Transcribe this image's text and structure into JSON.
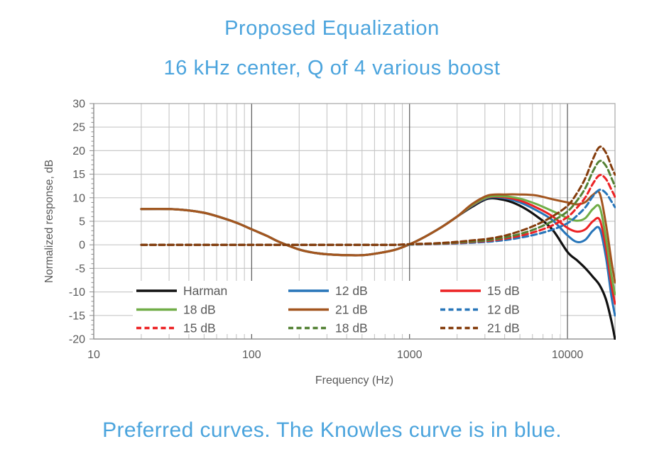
{
  "page": {
    "title_line1": "Proposed Equalization",
    "title_line2": "16 kHz center, Q of 4 various boost",
    "caption": "Preferred curves. The Knowles curve is in blue.",
    "title_color": "#4BA4DD",
    "background": "#ffffff"
  },
  "colors": {
    "axis_text": "#595959",
    "grid_minor": "#c6c6c6",
    "grid_major_vertical": "#595959",
    "grid_horizontal": "#c9c9c9",
    "plot_border": "#a6a6a6",
    "axis_line": "#8c8c8c",
    "legend_text": "#595959",
    "legend_background": "#ffffff"
  },
  "chart_data": {
    "type": "line",
    "title": "Proposed Equalization — 16 kHz center, Q of 4 various boost",
    "xlabel": "Frequency (Hz)",
    "ylabel": "Normalized response, dB",
    "x_scale": "log",
    "xlim": [
      10,
      20000
    ],
    "ylim": [
      -20,
      30
    ],
    "grid": true,
    "legend_position": "inside-bottom-left",
    "y_ticks": [
      30,
      25,
      20,
      15,
      10,
      5,
      0,
      -5,
      -10,
      -15,
      -20
    ],
    "x_tick_labels": [
      "10",
      "100",
      "1000",
      "10000"
    ],
    "x_major_ticks": [
      10,
      100,
      1000,
      10000
    ],
    "x": [
      20,
      30,
      40,
      50,
      60,
      80,
      100,
      125,
      150,
      200,
      250,
      300,
      400,
      500,
      600,
      800,
      1000,
      1250,
      1600,
      2000,
      2500,
      3150,
      4000,
      5000,
      6300,
      8000,
      10000,
      11500,
      13000,
      14500,
      16000,
      17500,
      19000,
      20000
    ],
    "series": [
      {
        "label": "Harman",
        "color": "#111111",
        "dashed": false,
        "width": 3.2,
        "values": [
          7.6,
          7.6,
          7.3,
          6.8,
          6.1,
          4.7,
          3.3,
          1.9,
          0.6,
          -1.0,
          -1.7,
          -2.0,
          -2.2,
          -2.2,
          -1.9,
          -1.1,
          0.1,
          1.7,
          3.8,
          6.0,
          8.1,
          9.8,
          9.5,
          8.3,
          6.2,
          3.3,
          -1.5,
          -3.3,
          -5.0,
          -6.8,
          -8.6,
          -11.5,
          -16.2,
          -20.0
        ]
      },
      {
        "label": "12 dB",
        "color": "#2775B9",
        "dashed": false,
        "width": 3,
        "values": [
          7.6,
          7.6,
          7.3,
          6.8,
          6.1,
          4.7,
          3.3,
          1.9,
          0.6,
          -1.0,
          -1.7,
          -2.0,
          -2.2,
          -2.2,
          -1.9,
          -1.1,
          0.1,
          1.7,
          3.8,
          6.0,
          8.3,
          10.0,
          9.9,
          9.0,
          7.4,
          5.3,
          2.0,
          0.6,
          1.1,
          3.0,
          3.4,
          -2.5,
          -11.0,
          -15.0
        ]
      },
      {
        "label": "15 dB",
        "color": "#EC2224",
        "dashed": false,
        "width": 3,
        "values": [
          7.6,
          7.6,
          7.3,
          6.8,
          6.1,
          4.7,
          3.3,
          1.9,
          0.6,
          -1.0,
          -1.7,
          -2.0,
          -2.2,
          -2.2,
          -1.9,
          -1.1,
          0.1,
          1.7,
          3.8,
          6.0,
          8.4,
          10.1,
          10.1,
          9.4,
          8.0,
          6.1,
          3.6,
          2.8,
          3.3,
          5.0,
          5.3,
          -0.5,
          -8.5,
          -12.5
        ]
      },
      {
        "label": "18 dB",
        "color": "#70AD47",
        "dashed": false,
        "width": 3,
        "values": [
          7.6,
          7.6,
          7.3,
          6.8,
          6.1,
          4.7,
          3.3,
          1.9,
          0.6,
          -1.0,
          -1.7,
          -2.0,
          -2.2,
          -2.2,
          -1.9,
          -1.1,
          0.1,
          1.7,
          3.8,
          6.0,
          8.5,
          10.2,
          10.3,
          9.8,
          8.7,
          7.2,
          5.7,
          5.1,
          5.7,
          7.6,
          8.0,
          1.5,
          -6.5,
          -10.5
        ]
      },
      {
        "label": "21 dB",
        "color": "#A3551F",
        "dashed": false,
        "width": 3,
        "values": [
          7.6,
          7.6,
          7.3,
          6.8,
          6.1,
          4.7,
          3.3,
          1.9,
          0.6,
          -1.0,
          -1.7,
          -2.0,
          -2.2,
          -2.2,
          -1.9,
          -1.1,
          0.1,
          1.7,
          3.8,
          6.0,
          8.7,
          10.5,
          10.7,
          10.7,
          10.5,
          9.7,
          9.0,
          8.6,
          9.1,
          10.6,
          10.9,
          4.5,
          -3.5,
          -8.0
        ]
      },
      {
        "label": "12 dB",
        "color": "#2775B9",
        "dashed": true,
        "width": 3,
        "values": [
          0,
          0,
          0,
          0,
          0,
          0,
          0,
          0,
          0,
          0,
          0,
          0,
          0,
          0,
          0,
          0,
          0.05,
          0.1,
          0.2,
          0.3,
          0.45,
          0.65,
          1.0,
          1.5,
          2.2,
          3.2,
          4.6,
          6.2,
          8.0,
          10.3,
          11.7,
          11.0,
          9.2,
          8.0
        ]
      },
      {
        "label": "15 dB",
        "color": "#EC2224",
        "dashed": true,
        "width": 3,
        "values": [
          0,
          0,
          0,
          0,
          0,
          0,
          0,
          0,
          0,
          0,
          0,
          0,
          0,
          0,
          0,
          0,
          0.1,
          0.15,
          0.25,
          0.4,
          0.6,
          0.85,
          1.3,
          1.9,
          2.8,
          4.1,
          5.9,
          7.9,
          10.1,
          13.0,
          14.8,
          14.0,
          11.7,
          10.2
        ]
      },
      {
        "label": "18 dB",
        "color": "#548235",
        "dashed": true,
        "width": 3,
        "values": [
          0,
          0,
          0,
          0,
          0,
          0,
          0,
          0,
          0,
          0,
          0,
          0,
          0,
          0,
          0,
          0,
          0.1,
          0.2,
          0.3,
          0.5,
          0.7,
          1.0,
          1.55,
          2.3,
          3.4,
          5.0,
          7.1,
          9.4,
          12.1,
          15.6,
          17.8,
          16.8,
          14.2,
          12.4
        ]
      },
      {
        "label": "21 dB",
        "color": "#843C0C",
        "dashed": true,
        "width": 3,
        "values": [
          0,
          0,
          0,
          0,
          0,
          0,
          0,
          0,
          0,
          0,
          0,
          0,
          0,
          0,
          0,
          0,
          0.15,
          0.25,
          0.4,
          0.65,
          0.95,
          1.3,
          1.95,
          2.9,
          4.2,
          6.0,
          8.3,
          11.0,
          14.2,
          18.2,
          20.8,
          19.6,
          16.6,
          14.9
        ]
      }
    ]
  }
}
